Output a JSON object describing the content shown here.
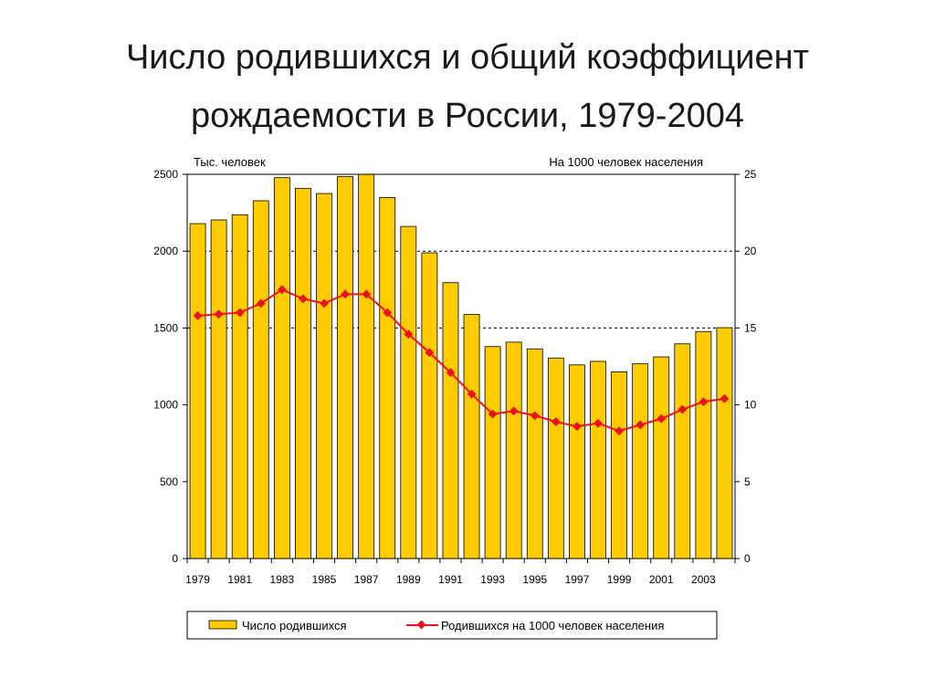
{
  "title_line1": "Число родившихся и общий коэффициент",
  "title_line2": "рождаемости в России, 1979-2004",
  "chart_data": {
    "type": "bar",
    "left_axis_unit": "Тыс. человек",
    "right_axis_unit": "На 1000 человек населения",
    "years": [
      1979,
      1980,
      1981,
      1982,
      1983,
      1984,
      1985,
      1986,
      1987,
      1988,
      1989,
      1990,
      1991,
      1992,
      1993,
      1994,
      1995,
      1996,
      1997,
      1998,
      1999,
      2000,
      2001,
      2002,
      2003,
      2004
    ],
    "x_tick_labels": [
      "1979",
      "1981",
      "1983",
      "1985",
      "1987",
      "1989",
      "1991",
      "1993",
      "1995",
      "1997",
      "1999",
      "2001",
      "2003"
    ],
    "left_ylim": [
      0,
      2500
    ],
    "left_ticks": [
      0,
      500,
      1000,
      1500,
      2000,
      2500
    ],
    "right_ylim": [
      0,
      25
    ],
    "right_ticks": [
      0,
      5,
      10,
      15,
      20,
      25
    ],
    "grid_lines_right": [
      15,
      20
    ],
    "series": [
      {
        "name": "Число родившихся",
        "kind": "bar",
        "axis": "left",
        "color": "#FFCC00",
        "values": [
          2179,
          2203,
          2237,
          2328,
          2478,
          2409,
          2375,
          2486,
          2500,
          2349,
          2161,
          1989,
          1795,
          1588,
          1379,
          1408,
          1364,
          1305,
          1260,
          1283,
          1215,
          1267,
          1312,
          1397,
          1477,
          1502
        ]
      },
      {
        "name": "Родившихся на 1000 человек населения",
        "kind": "line",
        "axis": "right",
        "color": "#E8141B",
        "values": [
          15.8,
          15.9,
          16.0,
          16.6,
          17.5,
          16.9,
          16.6,
          17.2,
          17.2,
          16.0,
          14.6,
          13.4,
          12.1,
          10.7,
          9.4,
          9.6,
          9.3,
          8.9,
          8.6,
          8.8,
          8.3,
          8.7,
          9.1,
          9.7,
          10.2,
          10.4
        ]
      }
    ]
  }
}
